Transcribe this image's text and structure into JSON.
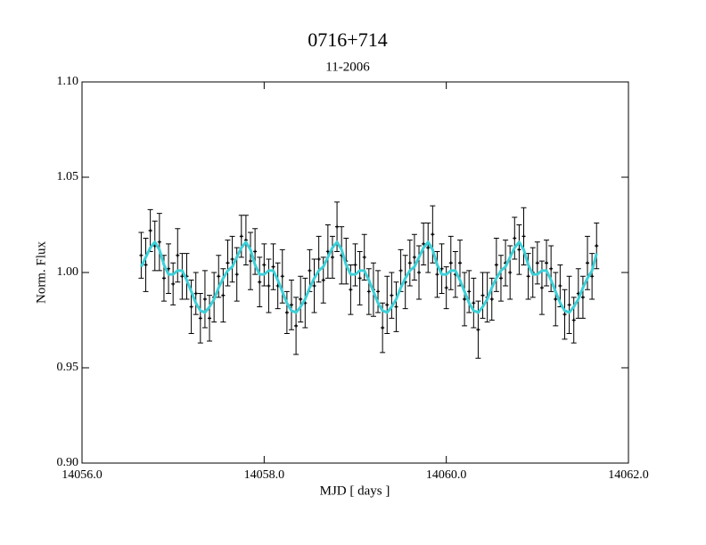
{
  "chart_data": {
    "type": "scatter",
    "title": "0716+714",
    "subtitle": "11-2006",
    "x_label": "MJD [ days ]",
    "y_label": "Norm. Flux",
    "xlim": [
      14056.0,
      14062.0
    ],
    "ylim": [
      0.9,
      1.1
    ],
    "xticks": [
      {
        "value": 14056.0,
        "label": "14056.0"
      },
      {
        "value": 14058.0,
        "label": "14058.0"
      },
      {
        "value": 14060.0,
        "label": "14060.0"
      },
      {
        "value": 14062.0,
        "label": "14062.0"
      }
    ],
    "yticks": [
      {
        "value": 0.9,
        "label": "0.90"
      },
      0.95,
      {
        "value": 1.0,
        "label": "1.00"
      },
      1.05,
      {
        "value": 1.1,
        "label": "1.10"
      }
    ],
    "x": [
      14056.65,
      14056.7,
      14056.75,
      14056.8,
      14056.85,
      14056.9,
      14056.95,
      14057,
      14057.05,
      14057.1,
      14057.15,
      14057.2,
      14057.25,
      14057.3,
      14057.35,
      14057.4,
      14057.45,
      14057.5,
      14057.55,
      14057.6,
      14057.65,
      14057.7,
      14057.75,
      14057.8,
      14057.85,
      14057.9,
      14057.95,
      14058,
      14058.05,
      14058.1,
      14058.15,
      14058.2,
      14058.25,
      14058.3,
      14058.35,
      14058.4,
      14058.45,
      14058.5,
      14058.55,
      14058.6,
      14058.65,
      14058.7,
      14058.75,
      14058.8,
      14058.85,
      14058.9,
      14058.95,
      14059,
      14059.05,
      14059.1,
      14059.15,
      14059.2,
      14059.25,
      14059.3,
      14059.35,
      14059.4,
      14059.45,
      14059.5,
      14059.55,
      14059.6,
      14059.65,
      14059.7,
      14059.75,
      14059.8,
      14059.85,
      14059.9,
      14059.95,
      14060,
      14060.05,
      14060.1,
      14060.15,
      14060.2,
      14060.25,
      14060.3,
      14060.35,
      14060.4,
      14060.45,
      14060.5,
      14060.55,
      14060.6,
      14060.65,
      14060.7,
      14060.75,
      14060.8,
      14060.85,
      14060.9,
      14060.95,
      14061,
      14061.05,
      14061.1,
      14061.15,
      14061.2,
      14061.25,
      14061.3,
      14061.35,
      14061.4,
      14061.45,
      14061.5,
      14061.55,
      14061.6,
      14061.65
    ],
    "series": [
      {
        "color": "#000000",
        "values": [
          1.009,
          1.004,
          1.022,
          1.014,
          1.016,
          0.997,
          1.002,
          0.994,
          1.009,
          0.998,
          0.998,
          0.982,
          0.989,
          0.976,
          0.986,
          0.976,
          0.987,
          0.998,
          0.988,
          1.005,
          1.007,
          0.999,
          1.019,
          1.017,
          1.006,
          1.011,
          0.995,
          1.004,
          0.993,
          1.003,
          0.993,
          0.998,
          0.979,
          0.983,
          0.972,
          0.986,
          0.984,
          1.001,
          0.993,
          1.007,
          0.996,
          1.011,
          1.008,
          1.024,
          1.009,
          1.006,
          0.991,
          1.004,
          0.997,
          1.008,
          0.99,
          0.991,
          0.99,
          0.971,
          0.983,
          0.988,
          0.982,
          1.001,
          0.995,
          1.005,
          1.008,
          1.0,
          1.015,
          1.013,
          1.02,
          0.999,
          1.002,
          0.992,
          1.005,
          0.999,
          1.005,
          0.986,
          0.99,
          0.984,
          0.97,
          0.988,
          0.987,
          0.986,
          1.004,
          0.997,
          1.005,
          1.0,
          1.018,
          1.012,
          1.019,
          0.998,
          1.0,
          1.005,
          0.992,
          1.005,
          1.002,
          0.986,
          0.993,
          0.978,
          0.983,
          0.975,
          0.989,
          0.987,
          1.005,
          0.998,
          1.014
        ],
        "errors": [
          0.012,
          0.014,
          0.011,
          0.013,
          0.015,
          0.012,
          0.013,
          0.011,
          0.014,
          0.012,
          0.012,
          0.014,
          0.011,
          0.013,
          0.015,
          0.012,
          0.013,
          0.011,
          0.014,
          0.012,
          0.012,
          0.014,
          0.011,
          0.013,
          0.015,
          0.012,
          0.013,
          0.011,
          0.014,
          0.012,
          0.012,
          0.014,
          0.011,
          0.013,
          0.015,
          0.012,
          0.013,
          0.011,
          0.014,
          0.012,
          0.012,
          0.014,
          0.011,
          0.013,
          0.015,
          0.012,
          0.013,
          0.011,
          0.014,
          0.012,
          0.012,
          0.014,
          0.011,
          0.013,
          0.015,
          0.012,
          0.013,
          0.011,
          0.014,
          0.012,
          0.012,
          0.014,
          0.011,
          0.013,
          0.015,
          0.012,
          0.013,
          0.011,
          0.014,
          0.012,
          0.012,
          0.014,
          0.011,
          0.013,
          0.015,
          0.012,
          0.013,
          0.011,
          0.014,
          0.012,
          0.012,
          0.014,
          0.011,
          0.013,
          0.015,
          0.012,
          0.013,
          0.011,
          0.014,
          0.012,
          0.012,
          0.014,
          0.011,
          0.013,
          0.015,
          0.012,
          0.013,
          0.011,
          0.014,
          0.012,
          0.012
        ]
      },
      {
        "type": "line",
        "color": "#3cd0d8",
        "values": [
          1.003,
          1.008,
          1.013,
          1.016,
          1.012,
          1.004,
          0.999,
          0.999,
          1.001,
          1.001,
          0.996,
          0.99,
          0.984,
          0.98,
          0.979,
          0.982,
          0.986,
          0.992,
          0.997,
          1.001,
          1.003,
          1.008,
          1.013,
          1.016,
          1.012,
          1.004,
          0.999,
          0.999,
          1.001,
          1.001,
          0.996,
          0.99,
          0.984,
          0.98,
          0.979,
          0.982,
          0.986,
          0.992,
          0.997,
          1.001,
          1.003,
          1.008,
          1.013,
          1.016,
          1.012,
          1.004,
          0.999,
          0.999,
          1.001,
          1.001,
          0.996,
          0.99,
          0.984,
          0.98,
          0.979,
          0.982,
          0.986,
          0.992,
          0.997,
          1.001,
          1.003,
          1.008,
          1.013,
          1.016,
          1.012,
          1.004,
          0.999,
          0.999,
          1.001,
          1.001,
          0.996,
          0.99,
          0.984,
          0.98,
          0.979,
          0.982,
          0.986,
          0.992,
          0.997,
          1.001,
          1.003,
          1.008,
          1.013,
          1.016,
          1.012,
          1.004,
          0.999,
          0.999,
          1.001,
          1.001,
          0.996,
          0.99,
          0.984,
          0.98,
          0.979,
          0.982,
          0.986,
          0.992,
          0.997,
          1.001,
          1.01
        ]
      }
    ]
  }
}
